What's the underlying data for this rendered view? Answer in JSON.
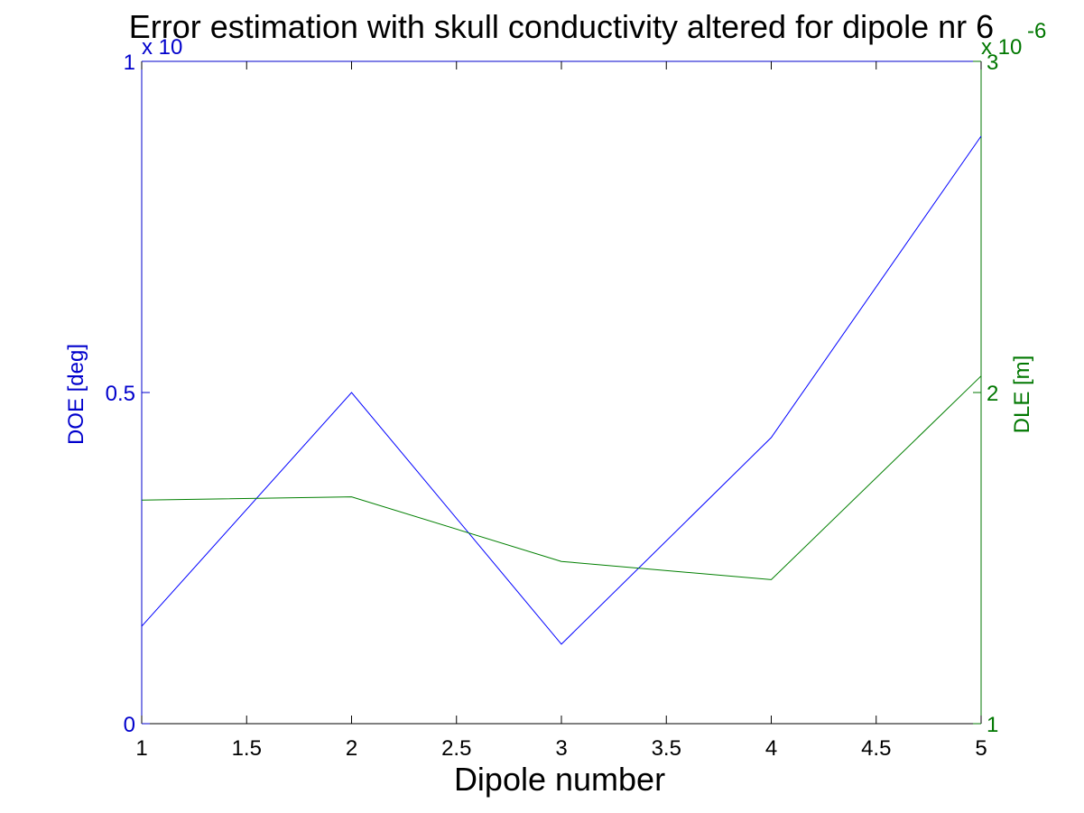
{
  "chart_data": {
    "type": "line",
    "title": "Error estimation with skull conductivity altered for dipole nr 6",
    "xlabel": "Dipole number",
    "ylabel_left": "DOE [deg]",
    "ylabel_right": "DLE [m]",
    "left_exponent": "x 10",
    "right_exponent": "x 10",
    "right_exponent_power": "-6",
    "x": [
      1,
      2,
      3,
      4,
      5
    ],
    "xlim": [
      1,
      5
    ],
    "xticks": [
      "1",
      "1.5",
      "2",
      "2.5",
      "3",
      "3.5",
      "4",
      "4.5",
      "5"
    ],
    "ylim_left": [
      0,
      1
    ],
    "yticks_left": [
      "0",
      "0.5",
      "1"
    ],
    "ylim_right": [
      1,
      3
    ],
    "yticks_right": [
      "1",
      "2",
      "3"
    ],
    "grid": false,
    "series": [
      {
        "axis": "left",
        "color": "#0000ff",
        "values": [
          0.147,
          0.5,
          0.12,
          0.432,
          0.887
        ]
      },
      {
        "axis": "right",
        "color": "#007f00",
        "values": [
          1.675,
          1.685,
          1.49,
          1.435,
          2.05
        ]
      }
    ]
  },
  "colors": {
    "left_axis": "#0000cc",
    "right_axis": "#007700",
    "left_series": "#0000ff",
    "right_series": "#007f00"
  }
}
